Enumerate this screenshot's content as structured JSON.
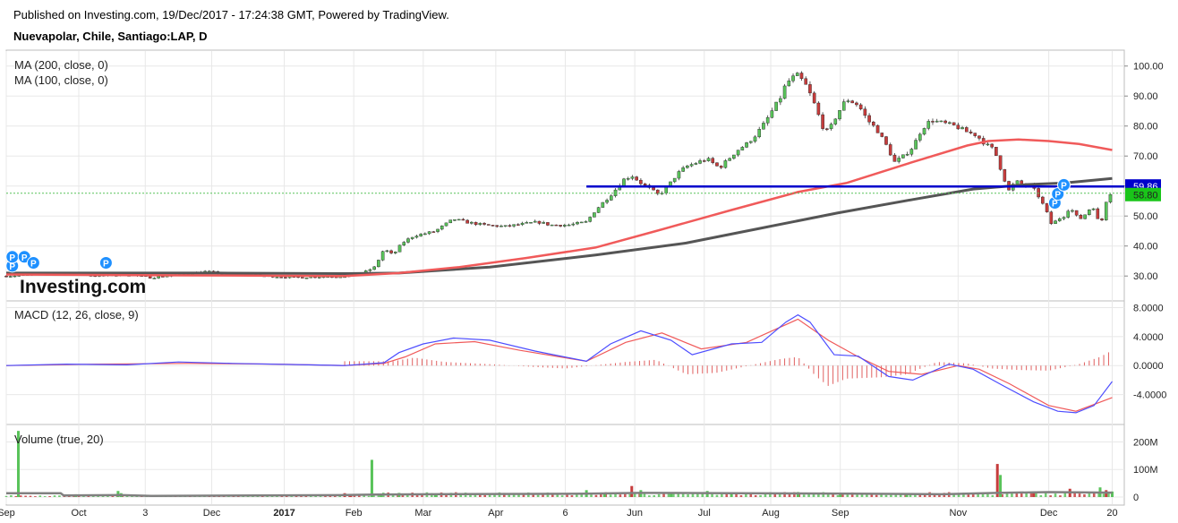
{
  "header": {
    "published": "Published on Investing.com, 19/Dec/2017 - 17:24:38 GMT, Powered by TradingView.",
    "symbol": "Nuevapolar, Chile, Santiago:LAP, D"
  },
  "watermark": "Investing.com",
  "colors": {
    "up": "#59c35a",
    "down": "#c63c3c",
    "ma200": "#555555",
    "ma100": "#f05a5a",
    "hline": "#0000cc",
    "macd": "#4d4dff",
    "signal": "#f05a5a",
    "hist": "#e06060",
    "volume_ma": "#808080",
    "marker": "#1e90ff",
    "grid": "#e8e8e8"
  },
  "chart_data": [
    {
      "type": "candlestick",
      "name": "price",
      "indicators": [
        "MA (200, close, 0)",
        "MA (100, close, 0)"
      ],
      "ylim": [
        22,
        105
      ],
      "yticks": [
        "100.00",
        "90.00",
        "80.00",
        "70.00",
        "60.00",
        "50.00",
        "40.00",
        "30.00"
      ],
      "x_ticks": [
        "Sep",
        "Oct",
        "3",
        "Dec",
        "2017",
        "Feb",
        "Mar",
        "Apr",
        "6",
        "Jun",
        "Jul",
        "Aug",
        "Sep",
        "Nov",
        "Dec",
        "20"
      ],
      "last_close": "58.80",
      "horizontal_line": {
        "value": 59.86,
        "label": "59.86"
      },
      "close_series": [
        [
          0,
          30
        ],
        [
          10,
          30.5
        ],
        [
          20,
          31
        ],
        [
          30,
          30
        ],
        [
          40,
          30.5
        ],
        [
          48,
          29.5
        ],
        [
          57,
          30.5
        ],
        [
          66,
          31.5
        ],
        [
          75,
          30.5
        ],
        [
          86,
          30
        ],
        [
          96,
          29.5
        ],
        [
          104,
          29.8
        ],
        [
          113,
          30
        ],
        [
          118,
          31
        ],
        [
          122,
          33
        ],
        [
          125,
          39
        ],
        [
          128,
          37
        ],
        [
          131,
          41
        ],
        [
          135,
          43.5
        ],
        [
          138,
          44
        ],
        [
          142,
          45
        ],
        [
          145,
          47
        ],
        [
          148,
          49
        ],
        [
          152,
          48
        ],
        [
          158,
          47
        ],
        [
          165,
          46.5
        ],
        [
          172,
          47.5
        ],
        [
          176,
          48
        ],
        [
          180,
          47
        ],
        [
          186,
          47
        ],
        [
          192,
          48
        ],
        [
          195,
          52
        ],
        [
          198,
          55
        ],
        [
          201,
          58
        ],
        [
          204,
          62
        ],
        [
          207,
          63.5
        ],
        [
          210,
          61
        ],
        [
          213,
          59
        ],
        [
          216,
          57
        ],
        [
          219,
          60
        ],
        [
          222,
          64
        ],
        [
          225,
          66.5
        ],
        [
          229,
          68
        ],
        [
          232,
          69
        ],
        [
          236,
          66
        ],
        [
          239,
          69
        ],
        [
          242,
          72
        ],
        [
          245,
          74
        ],
        [
          248,
          77
        ],
        [
          251,
          81
        ],
        [
          254,
          86
        ],
        [
          256,
          89
        ],
        [
          258,
          94
        ],
        [
          260,
          96
        ],
        [
          262,
          97
        ],
        [
          265,
          93
        ],
        [
          268,
          86
        ],
        [
          270,
          80
        ],
        [
          272,
          78
        ],
        [
          275,
          84
        ],
        [
          278,
          89
        ],
        [
          282,
          87
        ],
        [
          285,
          82
        ],
        [
          288,
          79
        ],
        [
          291,
          74
        ],
        [
          294,
          68
        ],
        [
          297,
          70
        ],
        [
          300,
          73
        ],
        [
          303,
          79
        ],
        [
          306,
          82
        ],
        [
          310,
          81
        ],
        [
          314,
          80
        ],
        [
          318,
          78
        ],
        [
          321,
          77
        ],
        [
          324,
          74
        ],
        [
          327,
          72
        ],
        [
          330,
          63
        ],
        [
          332,
          58
        ],
        [
          334,
          62
        ],
        [
          336,
          60
        ],
        [
          338,
          61
        ],
        [
          340,
          59
        ],
        [
          342,
          56
        ],
        [
          344,
          52
        ],
        [
          346,
          47
        ],
        [
          348,
          49
        ],
        [
          350,
          50
        ],
        [
          352,
          53
        ],
        [
          354,
          50
        ],
        [
          356,
          49
        ],
        [
          358,
          52
        ],
        [
          360,
          53
        ],
        [
          362,
          46
        ],
        [
          364,
          55
        ],
        [
          366,
          58.8
        ]
      ],
      "ma100_series": [
        [
          0,
          30.5
        ],
        [
          60,
          30.2
        ],
        [
          112,
          30
        ],
        [
          130,
          31
        ],
        [
          150,
          33
        ],
        [
          172,
          36
        ],
        [
          195,
          39.5
        ],
        [
          215,
          45
        ],
        [
          240,
          52
        ],
        [
          262,
          58
        ],
        [
          278,
          61
        ],
        [
          300,
          68
        ],
        [
          318,
          73.5
        ],
        [
          325,
          75
        ],
        [
          335,
          75.5
        ],
        [
          345,
          75
        ],
        [
          355,
          74
        ],
        [
          366,
          72
        ]
      ],
      "ma200_series": [
        [
          0,
          31
        ],
        [
          70,
          31
        ],
        [
          112,
          30.8
        ],
        [
          130,
          31
        ],
        [
          160,
          33
        ],
        [
          195,
          37
        ],
        [
          225,
          41
        ],
        [
          250,
          46
        ],
        [
          275,
          51
        ],
        [
          300,
          55.5
        ],
        [
          320,
          59
        ],
        [
          338,
          60.5
        ],
        [
          350,
          61
        ],
        [
          366,
          62.5
        ]
      ],
      "markers": [
        [
          2,
          31
        ],
        [
          2,
          34
        ],
        [
          6,
          34
        ],
        [
          9,
          32
        ],
        [
          33,
          32
        ],
        [
          347,
          52
        ],
        [
          348,
          55
        ],
        [
          350,
          58
        ]
      ]
    },
    {
      "type": "line",
      "name": "MACD (12, 26, close, 9)",
      "ylim": [
        -8,
        8.8
      ],
      "yticks": [
        "8.0000",
        "4.0000",
        "0.0000",
        "-4.0000"
      ],
      "series": [
        {
          "values": [
            [
              0,
              0
            ],
            [
              20,
              0.2
            ],
            [
              40,
              0.1
            ],
            [
              57,
              0.5
            ],
            [
              75,
              0.3
            ],
            [
              100,
              0.1
            ],
            [
              112,
              0
            ],
            [
              125,
              0.4
            ],
            [
              130,
              1.8
            ],
            [
              138,
              3
            ],
            [
              148,
              3.8
            ],
            [
              160,
              3.5
            ],
            [
              175,
              2
            ],
            [
              192,
              0.6
            ],
            [
              200,
              3
            ],
            [
              210,
              4.8
            ],
            [
              220,
              3.5
            ],
            [
              227,
              1.5
            ],
            [
              240,
              3
            ],
            [
              250,
              3.2
            ],
            [
              258,
              6
            ],
            [
              262,
              7
            ],
            [
              266,
              6
            ],
            [
              274,
              1.5
            ],
            [
              282,
              1.3
            ],
            [
              292,
              -1.5
            ],
            [
              300,
              -2
            ],
            [
              312,
              0.2
            ],
            [
              320,
              -0.5
            ],
            [
              330,
              -2.8
            ],
            [
              340,
              -5
            ],
            [
              348,
              -6.3
            ],
            [
              354,
              -6.5
            ],
            [
              360,
              -5.5
            ],
            [
              366,
              -2.2
            ]
          ]
        },
        {
          "values": [
            [
              0,
              0
            ],
            [
              30,
              0.2
            ],
            [
              60,
              0.3
            ],
            [
              90,
              0.2
            ],
            [
              112,
              0
            ],
            [
              125,
              0.3
            ],
            [
              132,
              1.2
            ],
            [
              142,
              3
            ],
            [
              155,
              3.3
            ],
            [
              170,
              2.1
            ],
            [
              192,
              0.6
            ],
            [
              205,
              3.2
            ],
            [
              217,
              4.5
            ],
            [
              230,
              2.3
            ],
            [
              245,
              3.2
            ],
            [
              262,
              6.4
            ],
            [
              272,
              3.5
            ],
            [
              282,
              1.2
            ],
            [
              292,
              -0.8
            ],
            [
              303,
              -1.2
            ],
            [
              315,
              0
            ],
            [
              322,
              -0.5
            ],
            [
              332,
              -2.5
            ],
            [
              345,
              -5.5
            ],
            [
              354,
              -6.3
            ],
            [
              366,
              -4.4
            ]
          ]
        }
      ],
      "histogram": [
        [
          128,
          0.6
        ],
        [
          135,
          1.1
        ],
        [
          145,
          0.5
        ],
        [
          160,
          0.2
        ],
        [
          175,
          -0.2
        ],
        [
          185,
          -0.4
        ],
        [
          205,
          0.5
        ],
        [
          215,
          0.8
        ],
        [
          225,
          -1.2
        ],
        [
          235,
          -1
        ],
        [
          248,
          0.2
        ],
        [
          256,
          0.9
        ],
        [
          262,
          1.2
        ],
        [
          268,
          -1.5
        ],
        [
          272,
          -2.8
        ],
        [
          278,
          -1.8
        ],
        [
          290,
          -1.6
        ],
        [
          298,
          -1.2
        ],
        [
          308,
          0.5
        ],
        [
          318,
          0.3
        ],
        [
          326,
          -0.4
        ],
        [
          335,
          -0.6
        ],
        [
          345,
          -0.7
        ],
        [
          355,
          0.2
        ],
        [
          362,
          1.2
        ],
        [
          366,
          2.1
        ]
      ]
    },
    {
      "type": "bar",
      "name": "Volume (true, 20)",
      "ylim": [
        0,
        260
      ],
      "yticks": [
        "200M",
        "100M",
        "0"
      ],
      "spikes": [
        [
          4,
          240,
          "up"
        ],
        [
          23,
          10,
          "up"
        ],
        [
          37,
          22,
          "up"
        ],
        [
          38,
          14,
          "up"
        ],
        [
          112,
          14,
          "down"
        ],
        [
          114,
          10,
          "down"
        ],
        [
          121,
          135,
          "up"
        ],
        [
          124,
          12,
          "up"
        ],
        [
          130,
          15,
          "up"
        ],
        [
          142,
          12,
          "up"
        ],
        [
          192,
          25,
          "up"
        ],
        [
          198,
          12,
          "up"
        ],
        [
          207,
          40,
          "down"
        ],
        [
          210,
          25,
          "up"
        ],
        [
          220,
          15,
          "up"
        ],
        [
          232,
          22,
          "up"
        ],
        [
          240,
          14,
          "up"
        ],
        [
          262,
          18,
          "up"
        ],
        [
          276,
          15,
          "up"
        ],
        [
          298,
          12,
          "up"
        ],
        [
          328,
          120,
          "down"
        ],
        [
          329,
          80,
          "up"
        ],
        [
          340,
          20,
          "down"
        ],
        [
          352,
          30,
          "down"
        ],
        [
          362,
          35,
          "up"
        ],
        [
          364,
          25,
          "down"
        ],
        [
          366,
          20,
          "up"
        ]
      ],
      "volume_ma": [
        [
          0,
          14
        ],
        [
          18,
          14
        ],
        [
          19,
          6
        ],
        [
          37,
          7
        ],
        [
          48,
          4
        ],
        [
          112,
          7
        ],
        [
          122,
          9
        ],
        [
          140,
          10
        ],
        [
          192,
          12
        ],
        [
          210,
          15
        ],
        [
          240,
          14
        ],
        [
          280,
          12
        ],
        [
          310,
          10
        ],
        [
          328,
          15
        ],
        [
          345,
          18
        ],
        [
          366,
          16
        ]
      ]
    }
  ]
}
